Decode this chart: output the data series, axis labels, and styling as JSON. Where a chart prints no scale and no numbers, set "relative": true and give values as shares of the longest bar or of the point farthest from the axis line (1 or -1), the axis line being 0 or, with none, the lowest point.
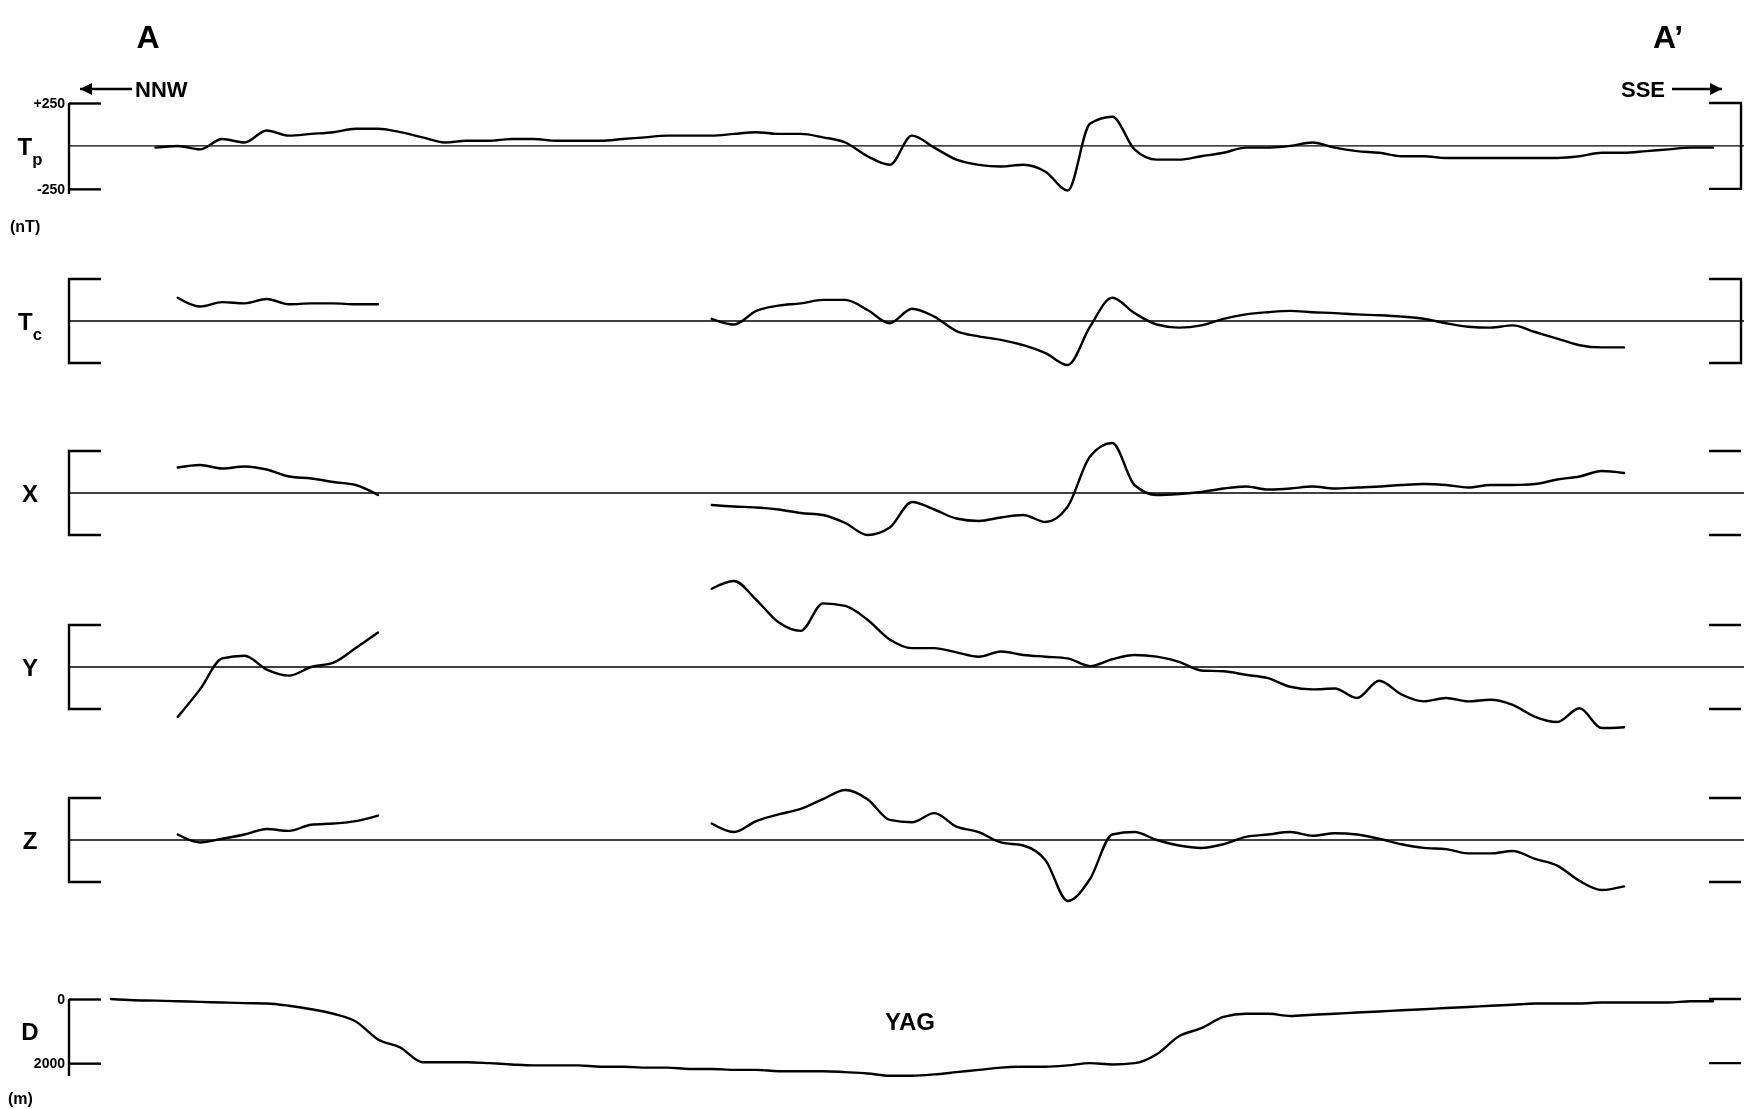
{
  "chart_data": [
    {
      "type": "line",
      "ylabel": "T$_{p}$",
      "annotations": [
        "A",
        "A’",
        "NNW",
        "SSE",
        "(nT)"
      ],
      "categories": [
        null,
        null,
        null,
        null,
        null,
        null,
        null,
        null,
        null,
        null,
        null,
        null,
        null,
        null,
        null,
        null,
        null,
        null,
        null,
        null,
        null,
        null,
        null,
        null,
        null,
        null,
        null,
        null,
        null,
        null,
        null,
        null,
        null,
        null,
        null,
        null,
        null,
        null,
        null,
        null,
        null,
        null,
        null,
        null,
        null,
        null,
        null,
        null,
        null,
        null,
        null,
        null,
        null,
        null,
        null,
        null,
        null,
        null,
        null,
        null,
        null,
        null,
        null,
        null,
        null,
        null,
        null,
        null,
        null,
        null,
        null,
        null,
        null
      ],
      "series": [
        {
          "color": "#000000",
          "values": [
            null,
            null,
            -10,
            0,
            -20,
            40,
            20,
            90,
            60,
            70,
            80,
            100,
            100,
            80,
            50,
            20,
            30,
            30,
            40,
            40,
            30,
            30,
            30,
            40,
            50,
            60,
            60,
            60,
            70,
            80,
            70,
            70,
            50,
            20,
            -60,
            -110,
            60,
            -10,
            -80,
            -110,
            -120,
            -110,
            -150,
            -260,
            130,
            170,
            -20,
            -80,
            -80,
            -60,
            -40,
            -10,
            -10,
            0,
            20,
            -10,
            -30,
            -40,
            -60,
            -60,
            -70,
            -70,
            -70,
            -70,
            -70,
            -70,
            -60,
            -40,
            -40,
            -30,
            -20,
            -10,
            -10
          ]
        }
      ],
      "ylim": [
        -280,
        250
      ],
      "yticks": [
        {
          "value": 250,
          "label": "+250"
        },
        -250
      ],
      "ref_lines": [
        {
          "axis": "y",
          "value": 0
        }
      ],
      "tick_labels": "y"
    },
    {
      "type": "line",
      "ylabel": "T$_{c}$",
      "relative": true,
      "categories": [
        null,
        null,
        null,
        null,
        null,
        null,
        null,
        null,
        null,
        null,
        null,
        null,
        null,
        null,
        null,
        null,
        null,
        null,
        null,
        null,
        null,
        null,
        null,
        null,
        null,
        null,
        null,
        null,
        null,
        null,
        null,
        null,
        null,
        null,
        null,
        null,
        null,
        null,
        null,
        null,
        null,
        null,
        null,
        null,
        null,
        null,
        null,
        null,
        null,
        null,
        null,
        null,
        null,
        null,
        null,
        null,
        null,
        null,
        null,
        null,
        null,
        null,
        null,
        null,
        null,
        null,
        null,
        null,
        null,
        null,
        null,
        null,
        null
      ],
      "series": [
        {
          "color": "#000000",
          "values": [
            null,
            null,
            null,
            0.53,
            0.33,
            0.43,
            0.4,
            0.5,
            0.38,
            0.4,
            0.4,
            0.38,
            0.38,
            null,
            null,
            null,
            null,
            null,
            null,
            null,
            null,
            null,
            null,
            null,
            null,
            null,
            null,
            0.05,
            -0.08,
            0.23,
            0.35,
            0.4,
            0.48,
            0.48,
            0.25,
            -0.05,
            0.28,
            0.1,
            -0.23,
            -0.35,
            -0.43,
            -0.55,
            -0.73,
            -1,
            -0.13,
            0.53,
            0.18,
            -0.08,
            -0.15,
            -0.1,
            0.05,
            0.15,
            0.2,
            0.23,
            0.2,
            0.18,
            0.15,
            0.13,
            0.1,
            0.05,
            -0.05,
            -0.13,
            -0.15,
            -0.1,
            -0.25,
            -0.4,
            -0.55,
            -0.6,
            -0.6,
            null,
            null,
            null,
            null
          ]
        }
      ]
    },
    {
      "type": "line",
      "ylabel": "X",
      "relative": true,
      "categories": [
        null,
        null,
        null,
        null,
        null,
        null,
        null,
        null,
        null,
        null,
        null,
        null,
        null,
        null,
        null,
        null,
        null,
        null,
        null,
        null,
        null,
        null,
        null,
        null,
        null,
        null,
        null,
        null,
        null,
        null,
        null,
        null,
        null,
        null,
        null,
        null,
        null,
        null,
        null,
        null,
        null,
        null,
        null,
        null,
        null,
        null,
        null,
        null,
        null,
        null,
        null,
        null,
        null,
        null,
        null,
        null,
        null,
        null,
        null,
        null,
        null,
        null,
        null,
        null,
        null,
        null,
        null,
        null,
        null,
        null,
        null,
        null,
        null
      ],
      "series": [
        {
          "color": "#000000",
          "values": [
            null,
            null,
            null,
            0.51,
            0.56,
            0.49,
            0.53,
            0.47,
            0.33,
            0.29,
            0.22,
            0.16,
            -0.04,
            null,
            null,
            null,
            null,
            null,
            null,
            null,
            null,
            null,
            null,
            null,
            null,
            null,
            null,
            -0.24,
            -0.27,
            -0.29,
            -0.33,
            -0.4,
            -0.44,
            -0.6,
            -0.84,
            -0.69,
            -0.18,
            -0.33,
            -0.51,
            -0.56,
            -0.49,
            -0.44,
            -0.58,
            -0.27,
            0.73,
            1,
            0.16,
            -0.04,
            -0.02,
            0.02,
            0.09,
            0.13,
            0.07,
            0.09,
            0.13,
            0.09,
            0.11,
            0.13,
            0.16,
            0.18,
            0.16,
            0.11,
            0.16,
            0.16,
            0.18,
            0.27,
            0.33,
            0.44,
            0.4,
            null,
            null,
            null,
            null
          ]
        }
      ]
    },
    {
      "type": "line",
      "ylabel": "Y",
      "relative": true,
      "categories": [
        null,
        null,
        null,
        null,
        null,
        null,
        null,
        null,
        null,
        null,
        null,
        null,
        null,
        null,
        null,
        null,
        null,
        null,
        null,
        null,
        null,
        null,
        null,
        null,
        null,
        null,
        null,
        null,
        null,
        null,
        null,
        null,
        null,
        null,
        null,
        null,
        null,
        null,
        null,
        null,
        null,
        null,
        null,
        null,
        null,
        null,
        null,
        null,
        null,
        null,
        null,
        null,
        null,
        null,
        null,
        null,
        null,
        null,
        null,
        null,
        null,
        null,
        null,
        null,
        null,
        null,
        null,
        null,
        null,
        null,
        null,
        null,
        null
      ],
      "series": [
        {
          "color": "#000000",
          "values": [
            null,
            null,
            null,
            -0.58,
            -0.26,
            0.1,
            0.13,
            -0.03,
            -0.1,
            0,
            0.05,
            0.22,
            0.4,
            null,
            null,
            null,
            null,
            null,
            null,
            null,
            null,
            null,
            null,
            null,
            null,
            null,
            null,
            0.91,
            1,
            0.78,
            0.52,
            0.42,
            0.74,
            0.71,
            0.55,
            0.32,
            0.22,
            0.22,
            0.17,
            0.12,
            0.18,
            0.14,
            0.12,
            0.1,
            0.01,
            0.09,
            0.14,
            0.12,
            0.06,
            -0.04,
            -0.05,
            -0.09,
            -0.13,
            -0.23,
            -0.26,
            -0.25,
            -0.36,
            -0.16,
            -0.32,
            -0.4,
            -0.36,
            -0.4,
            -0.38,
            -0.44,
            -0.58,
            -0.64,
            -0.48,
            -0.71,
            -0.7,
            null,
            null,
            null,
            null
          ]
        }
      ]
    },
    {
      "type": "line",
      "ylabel": "Z",
      "relative": true,
      "categories": [
        null,
        null,
        null,
        null,
        null,
        null,
        null,
        null,
        null,
        null,
        null,
        null,
        null,
        null,
        null,
        null,
        null,
        null,
        null,
        null,
        null,
        null,
        null,
        null,
        null,
        null,
        null,
        null,
        null,
        null,
        null,
        null,
        null,
        null,
        null,
        null,
        null,
        null,
        null,
        null,
        null,
        null,
        null,
        null,
        null,
        null,
        null,
        null,
        null,
        null,
        null,
        null,
        null,
        null,
        null,
        null,
        null,
        null,
        null,
        null,
        null,
        null,
        null,
        null,
        null,
        null,
        null,
        null,
        null,
        null,
        null,
        null,
        null
      ],
      "series": [
        {
          "color": "#000000",
          "values": [
            null,
            null,
            null,
            0.09,
            -0.04,
            0.02,
            0.09,
            0.18,
            0.15,
            0.25,
            0.27,
            0.31,
            0.4,
            null,
            null,
            null,
            null,
            null,
            null,
            null,
            null,
            null,
            null,
            null,
            null,
            null,
            null,
            0.27,
            0.13,
            0.31,
            0.42,
            0.51,
            0.67,
            0.82,
            0.67,
            0.33,
            0.29,
            0.44,
            0.22,
            0.13,
            -0.04,
            -0.09,
            -0.33,
            -1,
            -0.64,
            0.09,
            0.13,
            0,
            -0.09,
            -0.13,
            -0.07,
            0.05,
            0.09,
            0.13,
            0.07,
            0.11,
            0.09,
            0.02,
            -0.07,
            -0.13,
            -0.15,
            -0.22,
            -0.22,
            -0.18,
            -0.31,
            -0.42,
            -0.67,
            -0.82,
            -0.76,
            null,
            null,
            null,
            null
          ]
        }
      ]
    },
    {
      "type": "line",
      "ylabel": "D",
      "annotations": [
        "YAG",
        "(m)"
      ],
      "categories": [
        null,
        null,
        null,
        null,
        null,
        null,
        null,
        null,
        null,
        null,
        null,
        null,
        null,
        null,
        null,
        null,
        null,
        null,
        null,
        null,
        null,
        null,
        null,
        null,
        null,
        null,
        null,
        null,
        null,
        null,
        null,
        null,
        null,
        null,
        null,
        null,
        null,
        null,
        null,
        null,
        null,
        null,
        null,
        null,
        null,
        null,
        null,
        null,
        null,
        null,
        null,
        null,
        null,
        null,
        null,
        null,
        null,
        null,
        null,
        null,
        null,
        null,
        null,
        null,
        null,
        null,
        null,
        null,
        null,
        null,
        null,
        null,
        null
      ],
      "series": [
        {
          "color": "#000000",
          "values": [
            0,
            40,
            50,
            70,
            90,
            110,
            130,
            140,
            210,
            320,
            460,
            700,
            1260,
            1510,
            1970,
            1970,
            1970,
            2000,
            2040,
            2070,
            2070,
            2070,
            2110,
            2110,
            2140,
            2140,
            2180,
            2180,
            2210,
            2210,
            2250,
            2250,
            2250,
            2280,
            2320,
            2390,
            2390,
            2350,
            2280,
            2210,
            2140,
            2110,
            2110,
            2070,
            2000,
            2040,
            2000,
            1720,
            1160,
            910,
            560,
            460,
            460,
            530,
            490,
            460,
            420,
            390,
            350,
            320,
            280,
            250,
            210,
            180,
            140,
            140,
            140,
            110,
            110,
            110,
            110,
            70,
            70
          ]
        }
      ],
      "ylim": [
        2400,
        0
      ],
      "yticks": [
        0,
        2000
      ],
      "tick_labels": "y"
    }
  ]
}
